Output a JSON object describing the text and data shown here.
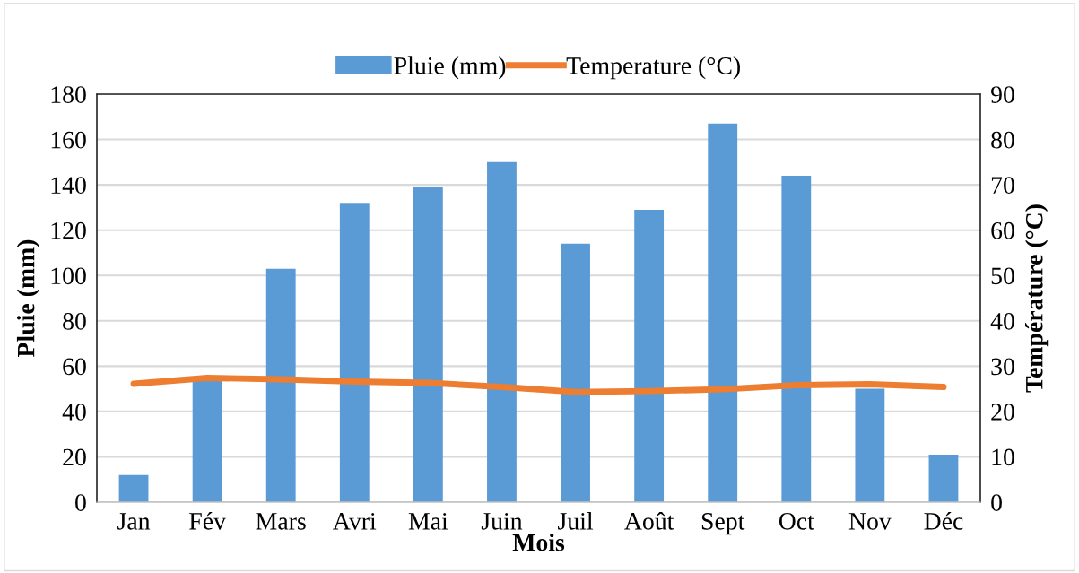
{
  "chart_data": {
    "type": "bar",
    "categories": [
      "Jan",
      "Fév",
      "Mars",
      "Avri",
      "Mai",
      "Juin",
      "Juil",
      "Août",
      "Sept",
      "Oct",
      "Nov",
      "Déc"
    ],
    "series": [
      {
        "name": "Pluie (mm)",
        "color": "#5b9bd5",
        "values": [
          12,
          54,
          103,
          132,
          139,
          150,
          114,
          129,
          167,
          144,
          50,
          21
        ]
      },
      {
        "name": "Temperature (°C)",
        "type": "line",
        "axis": "y2",
        "color": "#ed7d31",
        "values": [
          26.1,
          27.4,
          27.1,
          26.6,
          26.3,
          25.4,
          24.3,
          24.5,
          24.9,
          25.8,
          26.0,
          25.4
        ]
      }
    ],
    "xlabel": "Mois",
    "ylabel": "Pluie (mm)",
    "y2label": "Température (°C)",
    "ylim": [
      0,
      180
    ],
    "yticks": [
      0,
      20,
      40,
      60,
      80,
      100,
      120,
      140,
      160,
      180
    ],
    "y2lim": [
      0,
      90
    ],
    "y2ticks": [
      0,
      10,
      20,
      30,
      40,
      50,
      60,
      70,
      80,
      90
    ],
    "grid": "y",
    "legend": "top",
    "marker": "none",
    "line_style": "solid"
  }
}
